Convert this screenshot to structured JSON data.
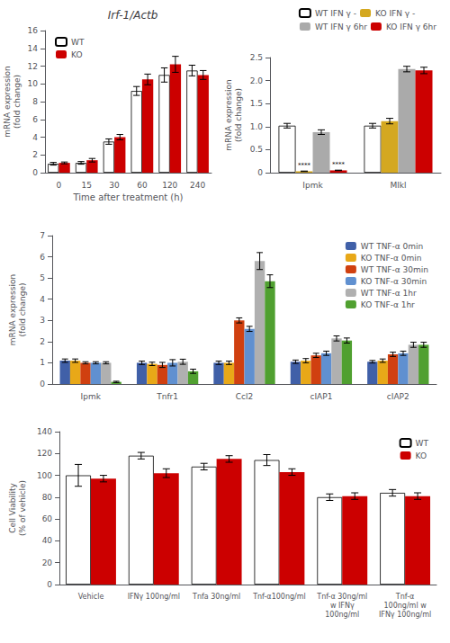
{
  "chart_data": [
    {
      "type": "bar",
      "title": "Irf-1/Actb",
      "xlabel": "Time after treatment (h)",
      "ylabel": "mRNA expression\n(fold change)",
      "categories": [
        0,
        15,
        30,
        60,
        120,
        240
      ],
      "series": [
        {
          "name": "WT",
          "color": "#ffffff",
          "values": [
            1.0,
            1.1,
            3.5,
            9.2,
            11.0,
            11.5
          ],
          "errors": [
            0.15,
            0.15,
            0.3,
            0.5,
            0.8,
            0.6
          ]
        },
        {
          "name": "KO",
          "color": "#cc0000",
          "values": [
            1.1,
            1.4,
            4.0,
            10.5,
            12.2,
            11.0
          ],
          "errors": [
            0.1,
            0.2,
            0.3,
            0.6,
            0.9,
            0.5
          ]
        }
      ],
      "ylim": [
        0,
        16
      ],
      "yticks": [
        0,
        2,
        4,
        6,
        8,
        10,
        12,
        14,
        16
      ],
      "grid": false,
      "legend": "upper left"
    },
    {
      "type": "bar",
      "ylabel": "mRNA expression\n(fold change)",
      "categories": [
        "Ipmk",
        "Mlkl"
      ],
      "series": [
        {
          "name": "WT IFN γ -",
          "color": "#ffffff",
          "values": [
            1.02,
            1.02
          ],
          "errors": [
            0.05,
            0.05
          ]
        },
        {
          "name": "KO IFN γ -",
          "color": "#d4a820",
          "values": [
            0.03,
            1.12
          ],
          "errors": [
            0.005,
            0.06
          ]
        },
        {
          "name": "WT IFN γ 6hr",
          "color": "#aaaaaa",
          "values": [
            0.88,
            2.25
          ],
          "errors": [
            0.05,
            0.06
          ]
        },
        {
          "name": "KO IFN γ 6hr",
          "color": "#cc0000",
          "values": [
            0.05,
            2.22
          ],
          "errors": [
            0.005,
            0.07
          ]
        }
      ],
      "annotations": [
        {
          "text": "****",
          "category": "Ipmk",
          "series": "KO IFN γ -"
        },
        {
          "text": "****",
          "category": "Ipmk",
          "series": "KO IFN γ 6hr"
        }
      ],
      "ylim": [
        0,
        2.5
      ],
      "yticks": [
        0,
        0.5,
        {
          "value": 1,
          "label": "1.0"
        },
        1.5,
        {
          "value": 2,
          "label": "2.0"
        },
        2.5
      ],
      "grid": false,
      "legend": "upper right"
    },
    {
      "type": "bar",
      "ylabel": "mRNA expression\n(fold change)",
      "categories": [
        "Ipmk",
        "Tnfr1",
        "Ccl2",
        "cIAP1",
        "cIAP2"
      ],
      "series": [
        {
          "name": "WT TNF-α 0min",
          "color": "#4060a8",
          "values": [
            1.1,
            1.0,
            1.0,
            1.05,
            1.05
          ],
          "errors": [
            0.08,
            0.08,
            0.08,
            0.08,
            0.06
          ]
        },
        {
          "name": "KO TNF-α 0min",
          "color": "#e8a818",
          "values": [
            1.1,
            0.95,
            1.0,
            1.1,
            1.1
          ],
          "errors": [
            0.08,
            0.08,
            0.08,
            0.1,
            0.08
          ]
        },
        {
          "name": "WT TNF-α 30min",
          "color": "#d04010",
          "values": [
            1.0,
            0.9,
            3.0,
            1.35,
            1.4
          ],
          "errors": [
            0.05,
            0.12,
            0.12,
            0.1,
            0.1
          ]
        },
        {
          "name": "KO TNF-α 30min",
          "color": "#6090d0",
          "values": [
            1.0,
            1.0,
            2.6,
            1.45,
            1.45
          ],
          "errors": [
            0.05,
            0.15,
            0.12,
            0.1,
            0.1
          ]
        },
        {
          "name": "WT TNF-α 1hr",
          "color": "#b0b0b0",
          "values": [
            1.0,
            1.05,
            5.8,
            2.15,
            1.85
          ],
          "errors": [
            0.05,
            0.12,
            0.4,
            0.12,
            0.12
          ]
        },
        {
          "name": "KO TNF-α 1hr",
          "color": "#50a030",
          "values": [
            0.1,
            0.6,
            4.85,
            2.05,
            1.85
          ],
          "errors": [
            0.03,
            0.1,
            0.3,
            0.12,
            0.12
          ]
        }
      ],
      "ylim": [
        0,
        7
      ],
      "yticks": [
        0,
        1,
        2,
        3,
        4,
        5,
        6,
        7
      ],
      "grid": false,
      "legend": "upper right"
    },
    {
      "type": "bar",
      "ylabel": "Cell Viability\n(% of vehicle)",
      "categories": [
        "Vehicle",
        "IFNγ 100ng/ml",
        "Tnfa 30ng/ml",
        "Tnf-α100ng/ml",
        "Tnf-α 30ng/ml\nw IFNγ\n100ng/ml",
        "Tnf-α\n100ng/ml w\nIFNγ 100ng/ml"
      ],
      "series": [
        {
          "name": "WT",
          "color": "#ffffff",
          "values": [
            100,
            118,
            108,
            114,
            80,
            84
          ],
          "errors": [
            10,
            3,
            3,
            5,
            3,
            3
          ]
        },
        {
          "name": "KO",
          "color": "#cc0000",
          "values": [
            97,
            102,
            115,
            103,
            81,
            81
          ],
          "errors": [
            3,
            4,
            3,
            3,
            3,
            3
          ]
        }
      ],
      "ylim": [
        0,
        140
      ],
      "yticks": [
        0,
        20,
        40,
        60,
        80,
        100,
        120,
        140
      ],
      "grid": false,
      "legend": "upper right"
    }
  ]
}
